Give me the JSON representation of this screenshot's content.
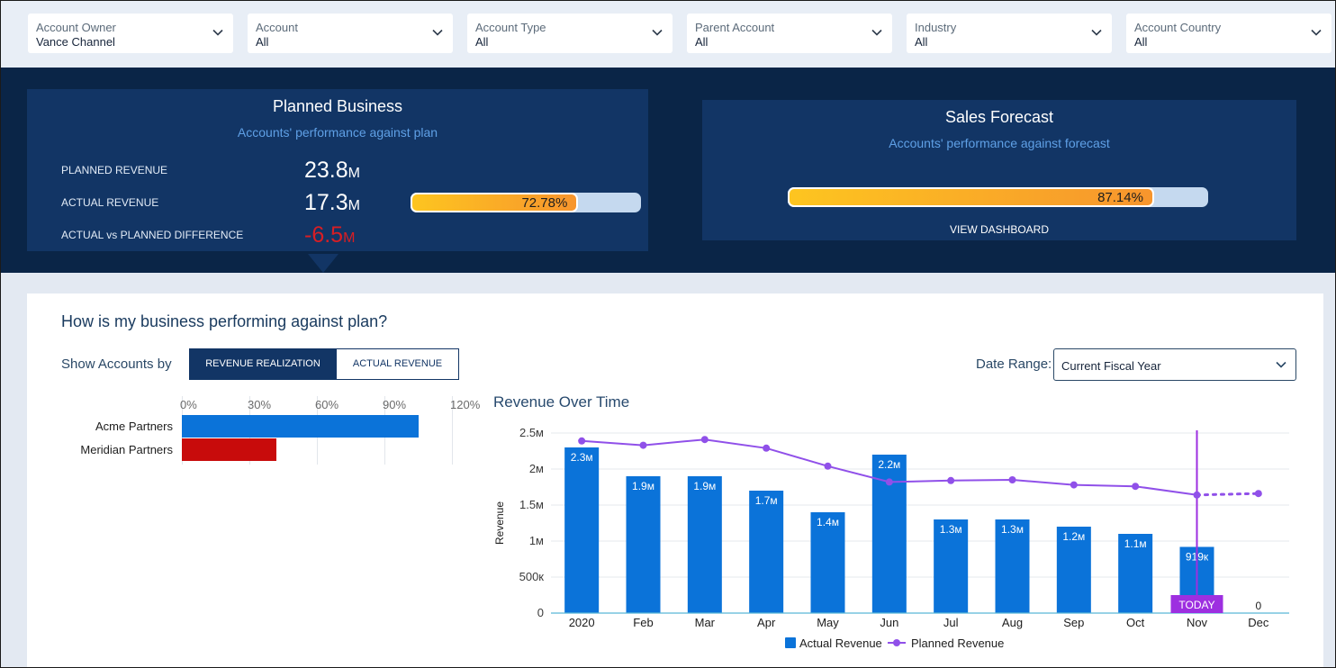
{
  "filters": [
    {
      "label": "Account Owner",
      "value": "Vance Channel"
    },
    {
      "label": "Account",
      "value": "All"
    },
    {
      "label": "Account Type",
      "value": "All"
    },
    {
      "label": "Parent Account",
      "value": "All"
    },
    {
      "label": "Industry",
      "value": "All"
    },
    {
      "label": "Account Country",
      "value": "All"
    }
  ],
  "planned_business": {
    "title": "Planned Business",
    "subtitle": "Accounts' performance against plan",
    "planned_revenue_label": "PLANNED REVENUE",
    "planned_revenue_num": "23.8",
    "planned_revenue_unit": "M",
    "actual_revenue_label": "ACTUAL REVENUE",
    "actual_revenue_num": "17.3",
    "actual_revenue_unit": "M",
    "difference_label": "ACTUAL vs PLANNED DIFFERENCE",
    "difference_num": "-6.5",
    "difference_unit": "M",
    "progress_label": "72.78%",
    "progress_fraction": 0.7278
  },
  "sales_forecast": {
    "title": "Sales Forecast",
    "subtitle": "Accounts' performance against forecast",
    "progress_label": "87.14%",
    "progress_fraction": 0.8714,
    "link_label": "VIEW DASHBOARD"
  },
  "panel": {
    "title": "How is my business performing against plan?",
    "show_by_label": "Show Accounts by",
    "seg_active": "REVENUE REALIZATION",
    "seg_inactive": "ACTUAL REVENUE",
    "date_range_label": "Date Range:",
    "date_range_value": "Current Fiscal Year",
    "chart_title": "Revenue Over Time"
  },
  "colors": {
    "navy": "#0a2547",
    "card": "#123565",
    "bar_blue": "#0b73d9",
    "line_purple": "#9050e9",
    "negative_red": "#c80b0b",
    "today": "#9d2fe0"
  },
  "chart_data": [
    {
      "type": "bar",
      "orientation": "horizontal",
      "categories": [
        "Acme Partners",
        "Meridian Partners"
      ],
      "values": [
        105,
        42
      ],
      "value_unit": "%",
      "xlim": [
        0,
        120
      ],
      "tick_labels": [
        "0%",
        "30%",
        "60%",
        "90%",
        "120%"
      ],
      "bar_colors": [
        "#0b73d9",
        "#c80b0b"
      ]
    },
    {
      "type": "bar",
      "title": "Revenue Over Time",
      "ylabel": "Revenue",
      "ylim": [
        0,
        2500000
      ],
      "y_ticks": [
        0,
        500000,
        1000000,
        1500000,
        2000000,
        2500000
      ],
      "y_tick_labels": [
        "0",
        "500к",
        "1м",
        "1.5м",
        "2м",
        "2.5м"
      ],
      "categories": [
        "2020",
        "Feb",
        "Mar",
        "Apr",
        "May",
        "Jun",
        "Jul",
        "Aug",
        "Sep",
        "Oct",
        "Nov",
        "Dec"
      ],
      "series": [
        {
          "name": "Actual Revenue",
          "type": "bar",
          "values": [
            2300000,
            1900000,
            1900000,
            1700000,
            1400000,
            2200000,
            1300000,
            1300000,
            1200000,
            1100000,
            919000,
            0
          ],
          "labels": [
            "2.3м",
            "1.9м",
            "1.9м",
            "1.7м",
            "1.4м",
            "2.2м",
            "1.3м",
            "1.3м",
            "1.2м",
            "1.1м",
            "919к",
            "0"
          ]
        },
        {
          "name": "Planned Revenue",
          "type": "line",
          "values": [
            2390000,
            2330000,
            2410000,
            2290000,
            2040000,
            1820000,
            1840000,
            1850000,
            1780000,
            1760000,
            1640000,
            1660000
          ]
        }
      ],
      "today_label": "TODAY",
      "today_category": "Nov",
      "legend": [
        "Actual Revenue",
        "Planned Revenue"
      ]
    }
  ]
}
